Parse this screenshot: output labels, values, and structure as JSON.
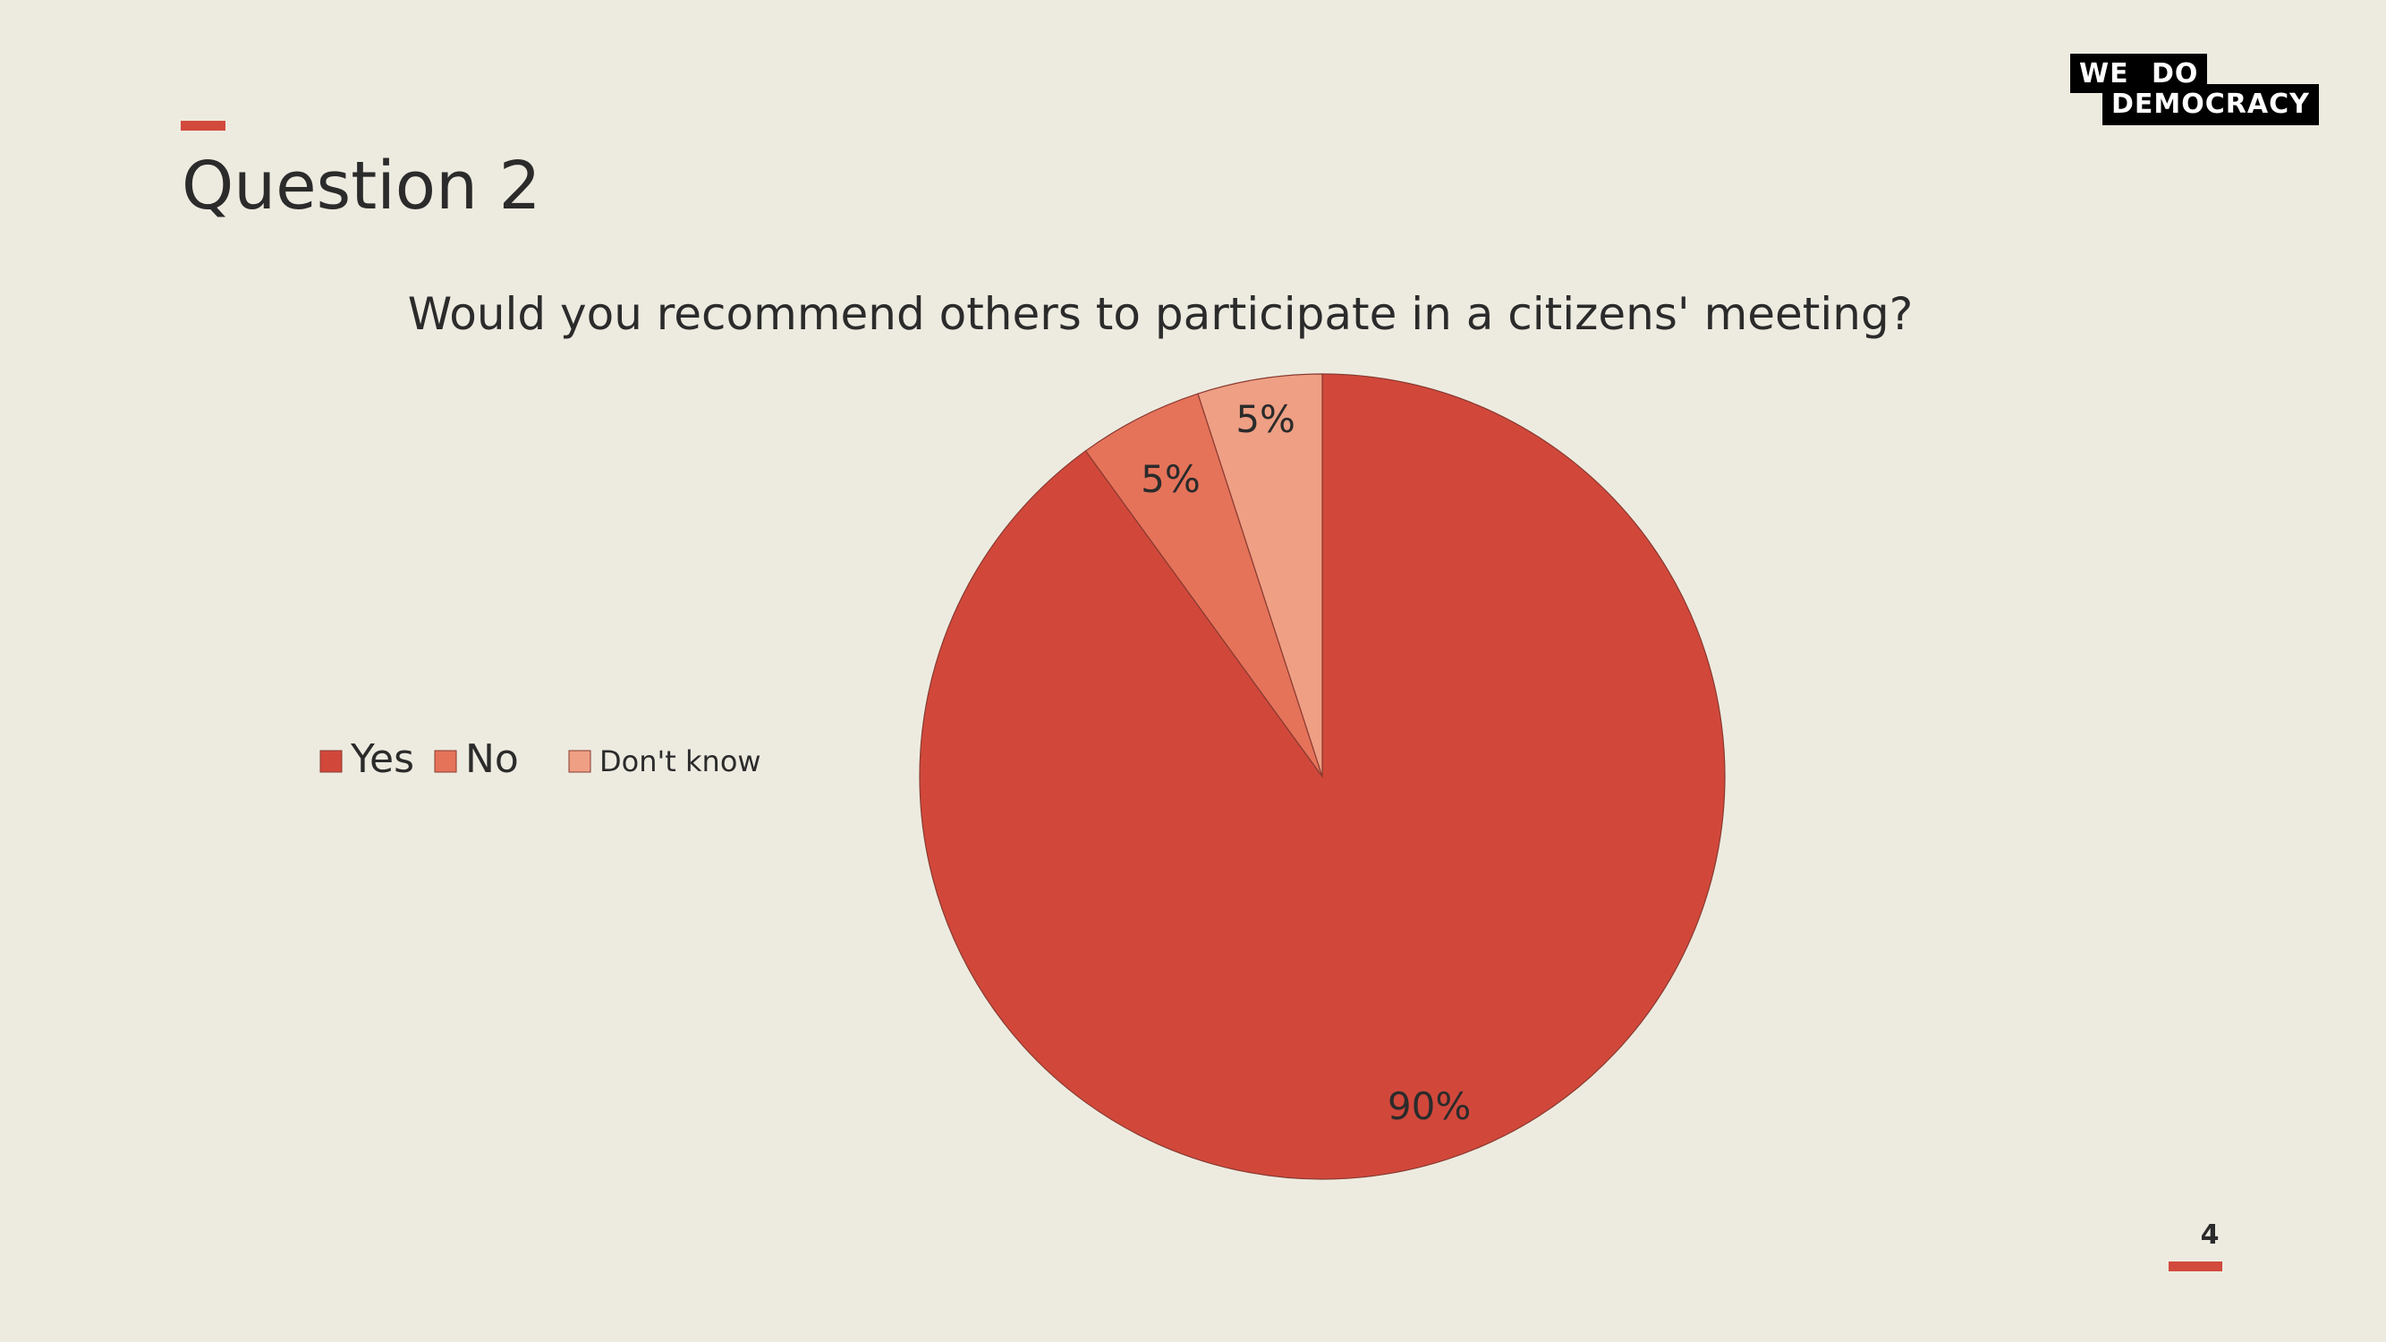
{
  "slide": {
    "title": "Question 2",
    "page_number": "4",
    "accent_color": "#d24a3c",
    "background_color": "#edebe0"
  },
  "logo": {
    "line1": "WE DO",
    "line2": "DEMOCRACY"
  },
  "chart_data": {
    "type": "pie",
    "title": "Would you recommend others to participate in a citizens' meeting?",
    "categories": [
      "Yes",
      "No",
      "Don't know"
    ],
    "values": [
      90,
      5,
      5
    ],
    "data_labels": [
      "90%",
      "5%",
      "5%"
    ],
    "colors": [
      "#d1483b",
      "#e5735a",
      "#ee9f84"
    ],
    "legend_position": "left",
    "start_angle_degrees": 0,
    "direction": "clockwise"
  }
}
